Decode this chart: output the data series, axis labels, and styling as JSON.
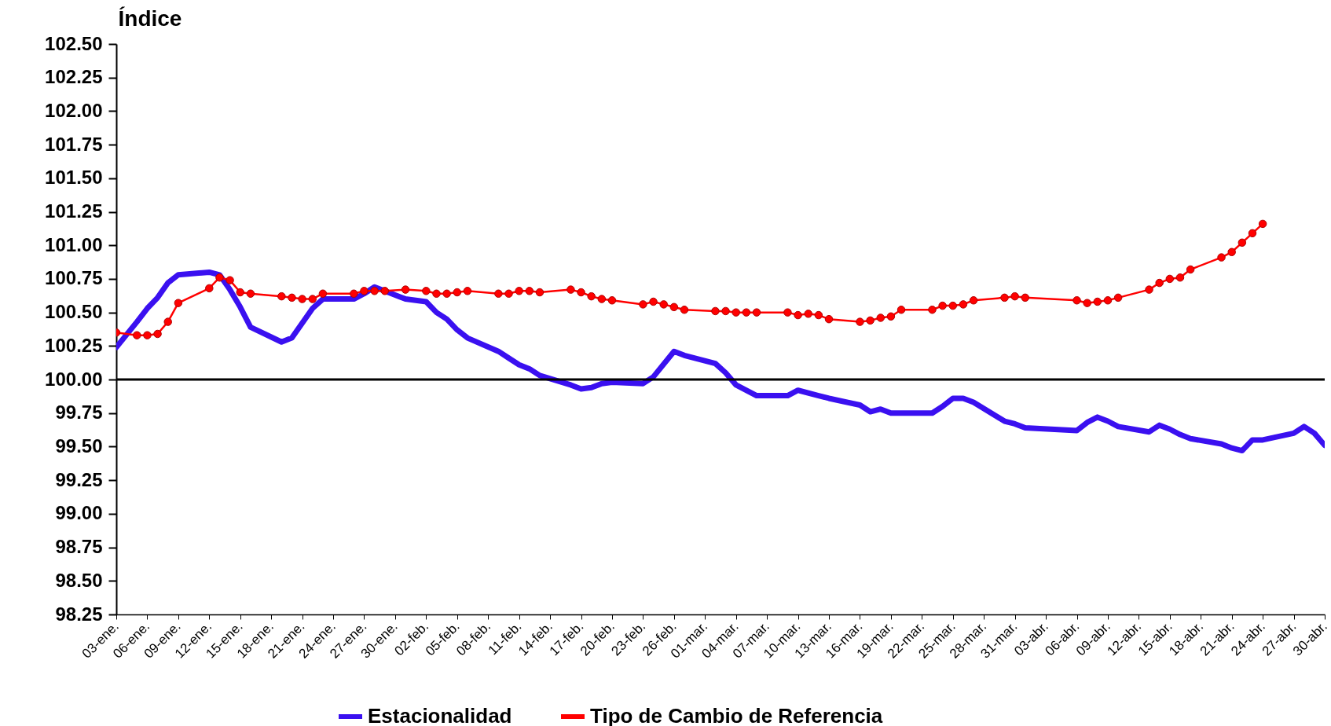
{
  "chart_data": {
    "type": "line",
    "ylabel": "Índice",
    "legend": "bottom",
    "xlim": [
      "--01-03",
      "--04-30"
    ],
    "ylim": [
      98.25,
      102.5
    ],
    "yticks": [
      {
        "value": 98.25,
        "label": "98.25"
      },
      {
        "value": 98.5,
        "label": "98.50"
      },
      {
        "value": 98.75,
        "label": "98.75"
      },
      {
        "value": 99,
        "label": "99.00"
      },
      {
        "value": 99.25,
        "label": "99.25"
      },
      {
        "value": 99.5,
        "label": "99.50"
      },
      {
        "value": 99.75,
        "label": "99.75"
      },
      {
        "value": 100,
        "label": "100.00"
      },
      {
        "value": 100.25,
        "label": "100.25"
      },
      {
        "value": 100.5,
        "label": "100.50"
      },
      {
        "value": 100.75,
        "label": "100.75"
      },
      {
        "value": 101,
        "label": "101.00"
      },
      {
        "value": 101.25,
        "label": "101.25"
      },
      {
        "value": 101.5,
        "label": "101.50"
      },
      {
        "value": 101.75,
        "label": "101.75"
      },
      {
        "value": 102,
        "label": "102.00"
      },
      {
        "value": 102.25,
        "label": "102.25"
      },
      {
        "value": 102.5,
        "label": "102.50"
      }
    ],
    "xticks": [
      {
        "value": "--01-03",
        "label": "03-ene."
      },
      {
        "value": "--01-06",
        "label": "06-ene."
      },
      {
        "value": "--01-09",
        "label": "09-ene."
      },
      {
        "value": "--01-12",
        "label": "12-ene."
      },
      {
        "value": "--01-15",
        "label": "15-ene."
      },
      {
        "value": "--01-18",
        "label": "18-ene."
      },
      {
        "value": "--01-21",
        "label": "21-ene."
      },
      {
        "value": "--01-24",
        "label": "24-ene."
      },
      {
        "value": "--01-27",
        "label": "27-ene."
      },
      {
        "value": "--01-30",
        "label": "30-ene."
      },
      {
        "value": "--02-02",
        "label": "02-feb."
      },
      {
        "value": "--02-05",
        "label": "05-feb."
      },
      {
        "value": "--02-08",
        "label": "08-feb."
      },
      {
        "value": "--02-11",
        "label": "11-feb."
      },
      {
        "value": "--02-14",
        "label": "14-feb."
      },
      {
        "value": "--02-17",
        "label": "17-feb."
      },
      {
        "value": "--02-20",
        "label": "20-feb."
      },
      {
        "value": "--02-23",
        "label": "23-feb."
      },
      {
        "value": "--02-26",
        "label": "26-feb."
      },
      {
        "value": "--03-01",
        "label": "01-mar."
      },
      {
        "value": "--03-04",
        "label": "04-mar."
      },
      {
        "value": "--03-07",
        "label": "07-mar."
      },
      {
        "value": "--03-10",
        "label": "10-mar."
      },
      {
        "value": "--03-13",
        "label": "13-mar."
      },
      {
        "value": "--03-16",
        "label": "16-mar."
      },
      {
        "value": "--03-19",
        "label": "19-mar."
      },
      {
        "value": "--03-22",
        "label": "22-mar."
      },
      {
        "value": "--03-25",
        "label": "25-mar."
      },
      {
        "value": "--03-28",
        "label": "28-mar."
      },
      {
        "value": "--03-31",
        "label": "31-mar."
      },
      {
        "value": "--04-03",
        "label": "03-abr."
      },
      {
        "value": "--04-06",
        "label": "06-abr."
      },
      {
        "value": "--04-09",
        "label": "09-abr."
      },
      {
        "value": "--04-12",
        "label": "12-abr."
      },
      {
        "value": "--04-15",
        "label": "15-abr."
      },
      {
        "value": "--04-18",
        "label": "18-abr."
      },
      {
        "value": "--04-21",
        "label": "21-abr."
      },
      {
        "value": "--04-24",
        "label": "24-abr."
      },
      {
        "value": "--04-27",
        "label": "27-abr."
      },
      {
        "value": "--04-30",
        "label": "30-abr."
      }
    ],
    "ref_lines": [
      {
        "axis": "y",
        "value": 100,
        "color": "#000000"
      }
    ],
    "series": [
      {
        "name": "Estacionalidad",
        "color": "#3a10f0",
        "x": [
          "--01-03",
          "--01-05",
          "--01-06",
          "--01-07",
          "--01-08",
          "--01-09",
          "--01-12",
          "--01-13",
          "--01-14",
          "--01-15",
          "--01-16",
          "--01-19",
          "--01-20",
          "--01-22",
          "--01-23",
          "--01-26",
          "--01-27",
          "--01-28",
          "--01-31",
          "--02-02",
          "--02-03",
          "--02-04",
          "--02-05",
          "--02-06",
          "--02-09",
          "--02-10",
          "--02-11",
          "--02-12",
          "--02-13",
          "--02-16",
          "--02-17",
          "--02-18",
          "--02-19",
          "--02-20",
          "--02-23",
          "--02-24",
          "--02-26",
          "--02-27",
          "--03-02",
          "--03-03",
          "--03-04",
          "--03-06",
          "--03-09",
          "--03-10",
          "--03-12",
          "--03-13",
          "--03-16",
          "--03-17",
          "--03-18",
          "--03-19",
          "--03-23",
          "--03-24",
          "--03-25",
          "--03-26",
          "--03-27",
          "--03-30",
          "--03-31",
          "--04-01",
          "--04-06",
          "--04-07",
          "--04-08",
          "--04-09",
          "--04-10",
          "--04-13",
          "--04-14",
          "--04-15",
          "--04-16",
          "--04-17",
          "--04-20",
          "--04-21",
          "--04-22",
          "--04-23",
          "--04-24",
          "--04-27",
          "--04-28",
          "--04-29",
          "--04-30"
        ],
        "values": [
          100.24,
          100.43,
          100.53,
          100.61,
          100.72,
          100.78,
          100.8,
          100.78,
          100.67,
          100.54,
          100.39,
          100.28,
          100.31,
          100.53,
          100.6,
          100.6,
          100.64,
          100.69,
          100.6,
          100.58,
          100.5,
          100.45,
          100.37,
          100.31,
          100.21,
          100.16,
          100.11,
          100.08,
          100.03,
          99.96,
          99.93,
          99.94,
          99.97,
          99.98,
          99.97,
          100.02,
          100.21,
          100.18,
          100.12,
          100.05,
          99.96,
          99.88,
          99.88,
          99.92,
          99.88,
          99.86,
          99.81,
          99.76,
          99.78,
          99.75,
          99.75,
          99.8,
          99.86,
          99.86,
          99.83,
          99.69,
          99.67,
          99.64,
          99.62,
          99.68,
          99.72,
          99.69,
          99.65,
          99.61,
          99.66,
          99.63,
          99.59,
          99.56,
          99.52,
          99.49,
          99.47,
          99.55,
          99.55,
          99.6,
          99.65,
          99.6,
          99.51
        ]
      },
      {
        "name": "Tipo de Cambio de Referencia",
        "color": "#ff0000",
        "marker": "circle",
        "x": [
          "--01-03",
          "--01-05",
          "--01-06",
          "--01-07",
          "--01-08",
          "--01-09",
          "--01-12",
          "--01-13",
          "--01-14",
          "--01-15",
          "--01-16",
          "--01-19",
          "--01-20",
          "--01-21",
          "--01-22",
          "--01-23",
          "--01-26",
          "--01-27",
          "--01-28",
          "--01-29",
          "--01-31",
          "--02-02",
          "--02-03",
          "--02-04",
          "--02-05",
          "--02-06",
          "--02-09",
          "--02-10",
          "--02-11",
          "--02-12",
          "--02-13",
          "--02-16",
          "--02-17",
          "--02-18",
          "--02-19",
          "--02-20",
          "--02-23",
          "--02-24",
          "--02-25",
          "--02-26",
          "--02-27",
          "--03-02",
          "--03-03",
          "--03-04",
          "--03-05",
          "--03-06",
          "--03-09",
          "--03-10",
          "--03-11",
          "--03-12",
          "--03-13",
          "--03-16",
          "--03-17",
          "--03-18",
          "--03-19",
          "--03-20",
          "--03-23",
          "--03-24",
          "--03-25",
          "--03-26",
          "--03-27",
          "--03-30",
          "--03-31",
          "--04-01",
          "--04-06",
          "--04-07",
          "--04-08",
          "--04-09",
          "--04-10",
          "--04-13",
          "--04-14",
          "--04-15",
          "--04-16",
          "--04-17",
          "--04-20",
          "--04-21",
          "--04-22",
          "--04-23",
          "--04-24"
        ],
        "values": [
          100.35,
          100.33,
          100.33,
          100.34,
          100.43,
          100.57,
          100.68,
          100.76,
          100.74,
          100.65,
          100.64,
          100.62,
          100.61,
          100.6,
          100.6,
          100.64,
          100.64,
          100.66,
          100.66,
          100.66,
          100.67,
          100.66,
          100.64,
          100.64,
          100.65,
          100.66,
          100.64,
          100.64,
          100.66,
          100.66,
          100.65,
          100.67,
          100.65,
          100.62,
          100.6,
          100.59,
          100.56,
          100.58,
          100.56,
          100.54,
          100.52,
          100.51,
          100.51,
          100.5,
          100.5,
          100.5,
          100.5,
          100.48,
          100.49,
          100.48,
          100.45,
          100.43,
          100.44,
          100.46,
          100.47,
          100.52,
          100.52,
          100.55,
          100.55,
          100.56,
          100.59,
          100.61,
          100.62,
          100.61,
          100.59,
          100.57,
          100.58,
          100.59,
          100.61,
          100.67,
          100.72,
          100.75,
          100.76,
          100.82,
          100.91,
          100.95,
          101.02,
          101.09,
          101.16
        ]
      }
    ]
  }
}
